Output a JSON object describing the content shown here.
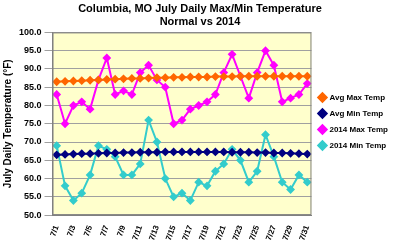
{
  "chart_data": {
    "type": "line",
    "title": [
      "Columbia, MO July Daily Max/Min Temperature",
      "Normal vs 2014"
    ],
    "y_label": "July Daily Temperature (°F)",
    "categories": [
      "7/1",
      null,
      "7/3",
      null,
      "7/5",
      null,
      "7/7",
      null,
      "7/9",
      null,
      "7/11",
      null,
      "7/13",
      null,
      "7/15",
      null,
      "7/17",
      null,
      "7/19",
      null,
      "7/21",
      null,
      "7/23",
      null,
      "7/25",
      null,
      "7/27",
      null,
      "7/29",
      null,
      "7/31"
    ],
    "series": [
      {
        "name": "Avg Max Temp",
        "color": "#ff6600",
        "marker": "diamond",
        "values": [
          86.5,
          86.6,
          86.7,
          86.8,
          86.9,
          87.0,
          87.1,
          87.2,
          87.3,
          87.4,
          87.4,
          87.5,
          87.6,
          87.6,
          87.7,
          87.7,
          87.8,
          87.8,
          87.8,
          87.9,
          87.9,
          87.9,
          88.0,
          88.0,
          88.0,
          88.0,
          88.0,
          88.0,
          88.0,
          88.0,
          88.0
        ]
      },
      {
        "name": "Avg Min Temp",
        "color": "#000080",
        "marker": "diamond",
        "values": [
          66.5,
          66.6,
          66.7,
          66.8,
          66.8,
          66.9,
          67.0,
          67.0,
          67.1,
          67.1,
          67.2,
          67.2,
          67.2,
          67.3,
          67.3,
          67.3,
          67.3,
          67.3,
          67.3,
          67.3,
          67.3,
          67.2,
          67.2,
          67.2,
          67.1,
          67.1,
          67.0,
          67.0,
          66.9,
          66.8,
          66.7
        ]
      },
      {
        "name": "2014 Max Temp",
        "color": "#ff00ff",
        "marker": "diamond",
        "values": [
          83,
          75,
          80,
          81,
          79,
          87,
          93,
          83,
          84,
          83,
          89,
          91,
          87,
          85,
          75,
          76,
          79,
          80,
          81,
          83,
          89,
          94,
          88,
          82,
          89,
          95,
          91,
          81,
          82,
          83,
          86
        ]
      },
      {
        "name": "2014 Min Temp",
        "color": "#33cccc",
        "marker": "diamond",
        "values": [
          69,
          58,
          54,
          56,
          61,
          69,
          68,
          66,
          61,
          61,
          64,
          76,
          70,
          60,
          55,
          56,
          54,
          59,
          58,
          62,
          64,
          68,
          65,
          59,
          62,
          72,
          66,
          59,
          57,
          61,
          59
        ]
      }
    ],
    "ylim": [
      50,
      100
    ],
    "yticks": [
      {
        "value": 50,
        "label": "50.0"
      },
      {
        "value": 55,
        "label": "55.0"
      },
      {
        "value": 60,
        "label": "60.0"
      },
      {
        "value": 65,
        "label": "65.0"
      },
      {
        "value": 70,
        "label": "70.0"
      },
      {
        "value": 75,
        "label": "75.0"
      },
      {
        "value": 80,
        "label": "80.0"
      },
      {
        "value": 85,
        "label": "85.0"
      },
      {
        "value": 90,
        "label": "90.0"
      },
      {
        "value": 95,
        "label": "95.0"
      },
      {
        "value": 100,
        "label": "100.0"
      }
    ],
    "grid": true,
    "legend": "right"
  }
}
